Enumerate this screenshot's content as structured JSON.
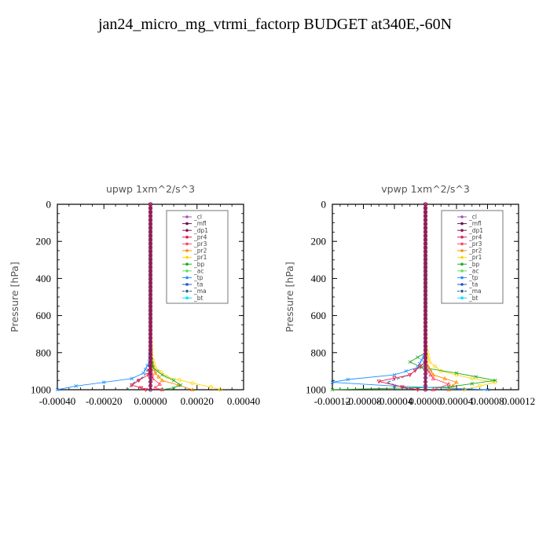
{
  "page_title": "jan24_micro_mg_vtrmi_factorp  BUDGET at340E,-60N",
  "chart_data": [
    {
      "type": "line",
      "title": "upwp   1xm^2/s^3",
      "ylabel": "Pressure [hPa]",
      "xlim": [
        -0.0004,
        0.0004
      ],
      "ylim": [
        1000,
        0
      ],
      "xticks": [
        "-0.00040",
        "-0.00020",
        "0.00000",
        "0.00020",
        "0.00040"
      ],
      "xtick_values": [
        -0.0004,
        -0.0002,
        0,
        0.0002,
        0.0004
      ],
      "yticks": [
        "0",
        "200",
        "400",
        "600",
        "800",
        "1000"
      ],
      "ytick_values": [
        0,
        200,
        400,
        600,
        800,
        1000
      ],
      "legend": [
        "_cl",
        "_mfl",
        "_dp1",
        "_pr4",
        "_pr3",
        "_pr2",
        "_pr1",
        "_bp",
        "_ac",
        "_tp",
        "_ta",
        "_ma",
        "_bt"
      ],
      "series": [
        {
          "name": "_pr1",
          "color": "#ffd700",
          "marker": "o",
          "x": [
            0,
            0,
            5e-06,
            2e-05,
            7e-05,
            0.00018,
            0.00026,
            0.0003
          ],
          "y": [
            0,
            700,
            820,
            880,
            930,
            965,
            985,
            1000
          ]
        },
        {
          "name": "_pr2",
          "color": "#ff8c00",
          "marker": "^",
          "x": [
            0,
            0,
            5e-06,
            2e-05,
            5e-05,
            0.00012,
            0.00018
          ],
          "y": [
            0,
            750,
            850,
            910,
            950,
            975,
            1000
          ]
        },
        {
          "name": "_bp",
          "color": "#22aa22",
          "marker": "x",
          "x": [
            0,
            0,
            1e-05,
            5e-05,
            0.0001,
            0.00013,
            0.0001,
            5e-05
          ],
          "y": [
            0,
            800,
            880,
            920,
            950,
            975,
            990,
            1000
          ]
        },
        {
          "name": "_tp",
          "color": "#1e90ff",
          "marker": "x",
          "x": [
            0,
            0,
            -5e-06,
            -3e-05,
            -8e-05,
            -0.0002,
            -0.00032,
            -0.0004
          ],
          "y": [
            0,
            750,
            850,
            910,
            940,
            960,
            980,
            1000
          ]
        },
        {
          "name": "_ma",
          "color": "#2a5f8a",
          "marker": "",
          "x": [
            0,
            0,
            -5e-06,
            -3e-05,
            -7e-05,
            -0.0001
          ],
          "y": [
            0,
            800,
            880,
            930,
            960,
            1000
          ]
        },
        {
          "name": "_pr4",
          "color": "#e6194b",
          "marker": "v",
          "x": [
            0,
            0,
            -1e-05,
            -5e-05,
            -8e-05,
            -4e-05,
            -2e-05
          ],
          "y": [
            0,
            850,
            920,
            950,
            975,
            990,
            1000
          ]
        },
        {
          "name": "_pr3",
          "color": "#ff4466",
          "marker": "^",
          "x": [
            0,
            0,
            1e-05,
            4e-05,
            2e-05,
            5e-05
          ],
          "y": [
            0,
            880,
            940,
            970,
            990,
            1000
          ]
        },
        {
          "name": "_cl",
          "color": "#9b59b6",
          "marker": "o",
          "x": [
            0,
            0
          ],
          "y": [
            0,
            1000
          ]
        },
        {
          "name": "_mfl",
          "color": "#6a0d5a",
          "marker": "o",
          "x": [
            0,
            0
          ],
          "y": [
            0,
            1000
          ]
        },
        {
          "name": "_dp1",
          "color": "#8b1a5a",
          "marker": "o",
          "x": [
            0,
            0
          ],
          "y": [
            0,
            1000
          ]
        }
      ]
    },
    {
      "type": "line",
      "title": "vpwp   1xm^2/s^3",
      "ylabel": "Pressure [hPa]",
      "xlim": [
        -0.00012,
        0.00012
      ],
      "ylim": [
        1000,
        0
      ],
      "xticks": [
        "-0.00012",
        "-0.00008",
        "-0.00004",
        "0.00000",
        "0.00004",
        "0.00008",
        "0.00012"
      ],
      "xtick_values": [
        -0.00012,
        -8e-05,
        -4e-05,
        0,
        4e-05,
        8e-05,
        0.00012
      ],
      "yticks": [
        "0",
        "200",
        "400",
        "600",
        "800",
        "1000"
      ],
      "ytick_values": [
        0,
        200,
        400,
        600,
        800,
        1000
      ],
      "legend": [
        "_cl",
        "_mfl",
        "_dp1",
        "_pr4",
        "_pr3",
        "_pr2",
        "_pr1",
        "_bp",
        "_ac",
        "_tp",
        "_ta",
        "_ma",
        "_bt"
      ],
      "series": [
        {
          "name": "_pr1",
          "color": "#ffd700",
          "marker": "o",
          "x": [
            0,
            0,
            5e-06,
            2e-05,
            6e-05,
            9e-05,
            5e-05
          ],
          "y": [
            0,
            750,
            850,
            900,
            940,
            960,
            1000
          ]
        },
        {
          "name": "_pr2",
          "color": "#ff8c00",
          "marker": "^",
          "x": [
            0,
            0,
            1e-05,
            4e-05,
            3e-05
          ],
          "y": [
            0,
            850,
            920,
            960,
            1000
          ]
        },
        {
          "name": "_bp",
          "color": "#22aa22",
          "marker": "x",
          "x": [
            0,
            0,
            -2e-05,
            -5e-06,
            4e-05,
            9e-05,
            3e-05,
            -0.00012
          ],
          "y": [
            0,
            800,
            850,
            880,
            910,
            950,
            985,
            1000
          ]
        },
        {
          "name": "_tp",
          "color": "#1e90ff",
          "marker": "x",
          "x": [
            0,
            0,
            -1e-05,
            -4e-05,
            -0.0001,
            -0.00012,
            -4e-05,
            8e-05
          ],
          "y": [
            0,
            800,
            880,
            920,
            945,
            960,
            980,
            1000
          ]
        },
        {
          "name": "_ma",
          "color": "#2a5f8a",
          "marker": "",
          "x": [
            0,
            0,
            -2e-05,
            -5e-05,
            -2e-05
          ],
          "y": [
            0,
            850,
            920,
            960,
            1000
          ]
        },
        {
          "name": "_pr4",
          "color": "#e6194b",
          "marker": "v",
          "x": [
            0,
            0,
            -2e-05,
            -6e-05,
            -3e-05,
            -1e-05
          ],
          "y": [
            0,
            850,
            920,
            955,
            985,
            1000
          ]
        },
        {
          "name": "_pr3",
          "color": "#ff4466",
          "marker": "^",
          "x": [
            0,
            0,
            1e-05,
            3e-05,
            1e-05
          ],
          "y": [
            0,
            880,
            940,
            970,
            1000
          ]
        },
        {
          "name": "_cl",
          "color": "#9b59b6",
          "marker": "o",
          "x": [
            0,
            0
          ],
          "y": [
            0,
            1000
          ]
        },
        {
          "name": "_mfl",
          "color": "#6a0d5a",
          "marker": "o",
          "x": [
            0,
            0
          ],
          "y": [
            0,
            1000
          ]
        },
        {
          "name": "_dp1",
          "color": "#8b1a5a",
          "marker": "o",
          "x": [
            0,
            0
          ],
          "y": [
            0,
            1000
          ]
        }
      ]
    }
  ],
  "legend_colors": {
    "_cl": "#9b59b6",
    "_mfl": "#6a0d5a",
    "_dp1": "#8b1a5a",
    "_pr4": "#e6194b",
    "_pr3": "#ff4466",
    "_pr2": "#ff8c00",
    "_pr1": "#ffd700",
    "_bp": "#22aa22",
    "_ac": "#66dd66",
    "_tp": "#1e90ff",
    "_ta": "#2255cc",
    "_ma": "#2a5f8a",
    "_bt": "#00e5ee"
  }
}
